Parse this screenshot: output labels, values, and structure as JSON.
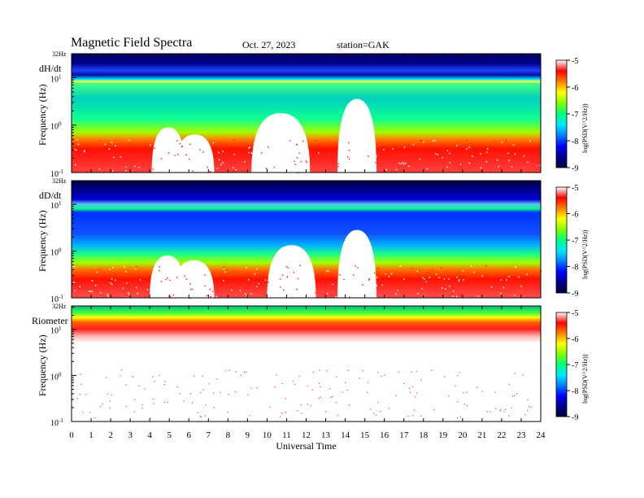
{
  "header": {
    "title": "Magnetic  Field  Spectra",
    "date": "Oct. 27, 2023",
    "station": "station=GAK"
  },
  "colors": {
    "colormap": [
      "#000040",
      "#00008c",
      "#0000ff",
      "#0080ff",
      "#00e8ff",
      "#00ff80",
      "#80ff00",
      "#ffff00",
      "#ff8000",
      "#ff0000",
      "#ffffff"
    ]
  },
  "chart_data": [
    {
      "type": "heatmap",
      "panel_label": "dH/dt",
      "ylabel": "Frequency  (Hz)",
      "y_scale": "log",
      "y_top_label": "32Hz",
      "yticks": [
        "10",
        "10",
        "10"
      ],
      "ytick_exponents": [
        "1",
        "0",
        "-1"
      ],
      "xlabel": "",
      "xlim": [
        0,
        24
      ],
      "colorbar": {
        "ticks": [
          "-5",
          "-6",
          "-7",
          "-8",
          "-9"
        ],
        "label": "log(PSD(V^2/Hz))",
        "range": [
          -9,
          -5
        ]
      }
    },
    {
      "type": "heatmap",
      "panel_label": "dD/dt",
      "ylabel": "Frequency  (Hz)",
      "y_scale": "log",
      "y_top_label": "32Hz",
      "yticks": [
        "10",
        "10",
        "10"
      ],
      "ytick_exponents": [
        "1",
        "0",
        "-1"
      ],
      "xlabel": "",
      "xlim": [
        0,
        24
      ],
      "colorbar": {
        "ticks": [
          "-5",
          "-6",
          "-7",
          "-8",
          "-9"
        ],
        "label": "log(PSD(V^2/Hz))",
        "range": [
          -9,
          -5
        ]
      }
    },
    {
      "type": "heatmap",
      "panel_label": "Riometer",
      "ylabel": "Frequency  (Hz)",
      "y_scale": "log",
      "y_top_label": "32Hz",
      "yticks": [
        "10",
        "10",
        "10"
      ],
      "ytick_exponents": [
        "1",
        "0",
        "-1"
      ],
      "xlabel": "Universal Time",
      "xlim": [
        0,
        24
      ],
      "xticks": [
        "0",
        "1",
        "2",
        "3",
        "4",
        "5",
        "6",
        "7",
        "8",
        "9",
        "10",
        "11",
        "12",
        "13",
        "14",
        "15",
        "16",
        "17",
        "18",
        "19",
        "20",
        "21",
        "22",
        "23",
        "24"
      ],
      "colorbar": {
        "ticks": [
          "-5",
          "-6",
          "-7",
          "-8",
          "-9"
        ],
        "label": "log(PSD(V^2/Hz))",
        "range": [
          -9,
          -5
        ]
      }
    }
  ]
}
